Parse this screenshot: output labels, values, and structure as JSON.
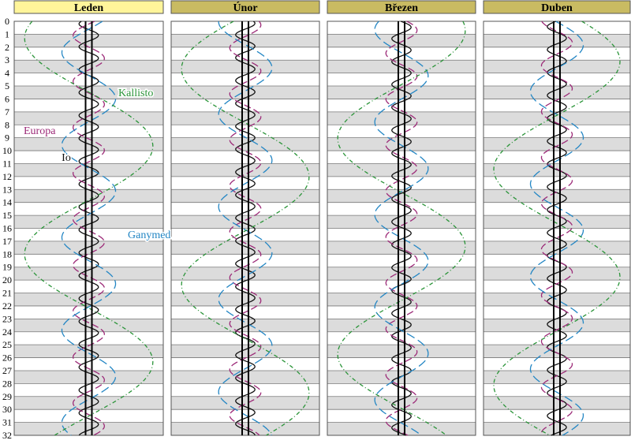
{
  "months": [
    "Leden",
    "Únor",
    "Březen",
    "Duben"
  ],
  "days": [
    0,
    1,
    2,
    3,
    4,
    5,
    6,
    7,
    8,
    9,
    10,
    11,
    12,
    13,
    14,
    15,
    16,
    17,
    18,
    19,
    20,
    21,
    22,
    23,
    24,
    25,
    26,
    27,
    28,
    29,
    30,
    31,
    32
  ],
  "moons": [
    {
      "name": "Io",
      "color": "#111111"
    },
    {
      "name": "Europa",
      "color": "#9c2a78"
    },
    {
      "name": "Ganymed",
      "color": "#2386c4"
    },
    {
      "name": "Kallisto",
      "color": "#2a9438"
    }
  ]
}
